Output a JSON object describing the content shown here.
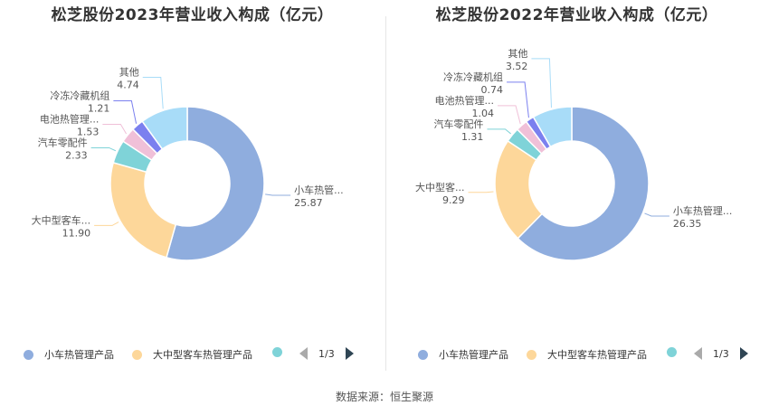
{
  "source_text": "数据来源：恒生聚源",
  "chart_data": [
    {
      "type": "pie",
      "title": "松芝股份2023年营业收入构成（亿元）",
      "colors": [
        "#8fadde",
        "#fdd79a",
        "#7fd3d8",
        "#f0c0d8",
        "#7b80ef",
        "#a8dcf8"
      ],
      "slices": [
        {
          "label": "小车热管理产品",
          "value": 25.87,
          "value_text": "25.87",
          "display_label": "小车热管..."
        },
        {
          "label": "大中型客车热管理产品",
          "value": 11.9,
          "value_text": "11.90",
          "display_label": "大中型客车..."
        },
        {
          "label": "汽车零配件",
          "value": 2.33,
          "value_text": "2.33",
          "display_label": "汽车零配件"
        },
        {
          "label": "电池热管理产品",
          "value": 1.53,
          "value_text": "1.53",
          "display_label": "电池热管理..."
        },
        {
          "label": "冷冻冷藏机组",
          "value": 1.21,
          "value_text": "1.21",
          "display_label": "冷冻冷藏机组"
        },
        {
          "label": "其他",
          "value": 4.74,
          "value_text": "4.74",
          "display_label": "其他"
        }
      ],
      "legend": {
        "items": [
          "小车热管理产品",
          "大中型客车热管理产品",
          ""
        ],
        "page_text": "1/3"
      }
    },
    {
      "type": "pie",
      "title": "松芝股份2022年营业收入构成（亿元）",
      "colors": [
        "#8fadde",
        "#fdd79a",
        "#7fd3d8",
        "#f0c0d8",
        "#7b80ef",
        "#a8dcf8"
      ],
      "slices": [
        {
          "label": "小车热管理产品",
          "value": 26.35,
          "value_text": "26.35",
          "display_label": "小车热管理..."
        },
        {
          "label": "大中型客车热管理产品",
          "value": 9.29,
          "value_text": "9.29",
          "display_label": "大中型客..."
        },
        {
          "label": "汽车零配件",
          "value": 1.31,
          "value_text": "1.31",
          "display_label": "汽车零配件"
        },
        {
          "label": "电池热管理产品",
          "value": 1.04,
          "value_text": "1.04",
          "display_label": "电池热管理..."
        },
        {
          "label": "冷冻冷藏机组",
          "value": 0.74,
          "value_text": "0.74",
          "display_label": "冷冻冷藏机组"
        },
        {
          "label": "其他",
          "value": 3.52,
          "value_text": "3.52",
          "display_label": "其他"
        }
      ],
      "legend": {
        "items": [
          "小车热管理产品",
          "大中型客车热管理产品",
          ""
        ],
        "page_text": "1/3"
      }
    }
  ]
}
